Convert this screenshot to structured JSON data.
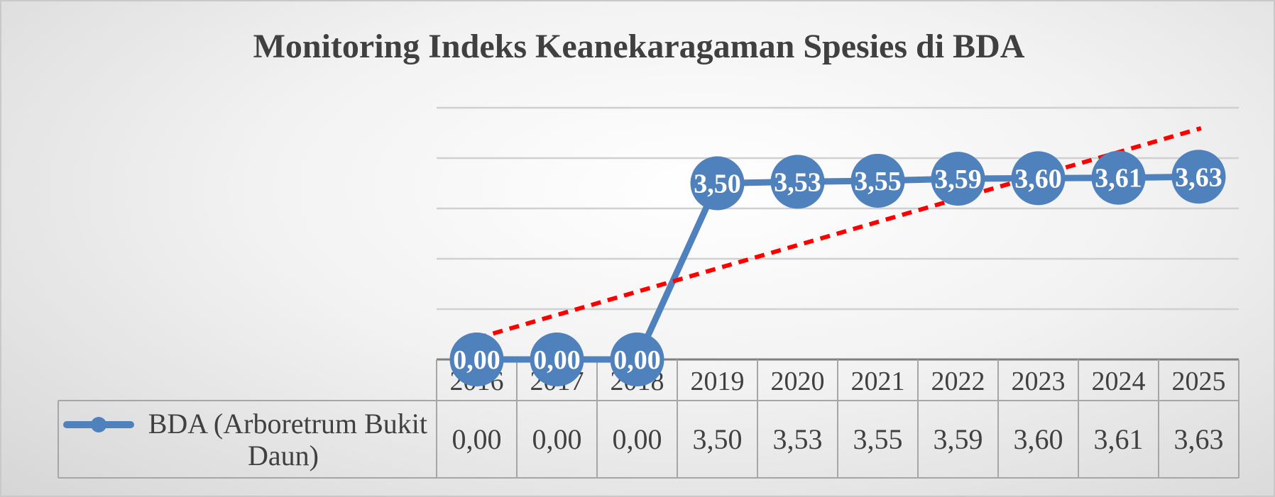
{
  "chart_data": {
    "type": "line",
    "title": "Monitoring Indeks Keanekaragaman Spesies di BDA",
    "categories": [
      "2016",
      "2017",
      "2018",
      "2019",
      "2020",
      "2021",
      "2022",
      "2023",
      "2024",
      "2025"
    ],
    "series": [
      {
        "name": "BDA (Arboretrum Bukit Daun)",
        "values": [
          0.0,
          0.0,
          0.0,
          3.5,
          3.53,
          3.55,
          3.59,
          3.6,
          3.61,
          3.63
        ],
        "value_labels": [
          "0,00",
          "0,00",
          "0,00",
          "3,50",
          "3,53",
          "3,55",
          "3,59",
          "3,60",
          "3,61",
          "3,63"
        ],
        "color": "#4f81bd"
      }
    ],
    "trendline": {
      "type": "linear",
      "style": "dashed",
      "color": "#ff0000"
    },
    "ylim": [
      0,
      5
    ],
    "grid": true,
    "legend": "data-table",
    "data_table": true
  }
}
